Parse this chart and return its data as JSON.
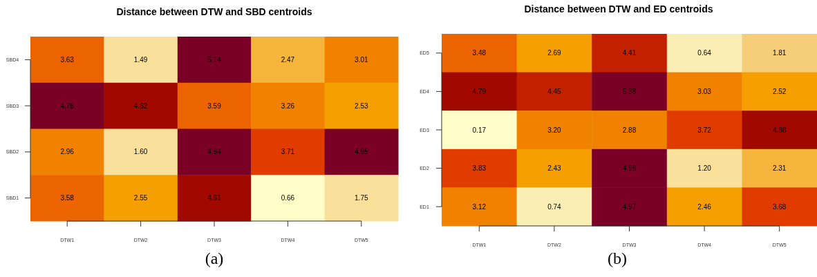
{
  "chart_data": [
    {
      "type": "heatmap",
      "title": "Distance between DTW and SBD centroids",
      "categories": [
        "DTW1",
        "DTW2",
        "DTW3",
        "DTW4",
        "DTW5"
      ],
      "y_categories": [
        "SBD4",
        "SBD3",
        "SBD2",
        "SBD1"
      ],
      "cells": [
        [
          3.63,
          1.49,
          5.14,
          2.47,
          3.01
        ],
        [
          4.78,
          4.62,
          3.59,
          3.26,
          2.53
        ],
        [
          2.96,
          1.6,
          4.84,
          3.71,
          4.95
        ],
        [
          3.58,
          2.55,
          4.61,
          0.66,
          1.75
        ]
      ],
      "cell_labels": [
        [
          "3.63",
          "1.49",
          "5.14",
          "2.47",
          "3.01"
        ],
        [
          "4.78",
          "4.62",
          "3.59",
          "3.26",
          "2.53"
        ],
        [
          "2.96",
          "1.60",
          "4.84",
          "3.71",
          "4.95"
        ],
        [
          "3.58",
          "2.55",
          "4.61",
          "0.66",
          "1.75"
        ]
      ],
      "data_labels": true,
      "annotations": [
        "(a)"
      ]
    },
    {
      "type": "heatmap",
      "title": "Distance between DTW and ED centroids",
      "categories": [
        "DTW1",
        "DTW2",
        "DTW3",
        "DTW4",
        "DTW5"
      ],
      "y_categories": [
        "ED5",
        "ED4",
        "ED3",
        "ED2",
        "ED1"
      ],
      "cells": [
        [
          3.48,
          2.69,
          4.41,
          0.64,
          1.81
        ],
        [
          4.79,
          4.45,
          5.38,
          3.03,
          2.52
        ],
        [
          0.17,
          3.2,
          2.88,
          3.72,
          4.88
        ],
        [
          3.83,
          2.43,
          4.96,
          1.2,
          2.31
        ],
        [
          3.12,
          0.74,
          4.97,
          2.46,
          3.68
        ]
      ],
      "cell_labels": [
        [
          "3.48",
          "2.69",
          "4.41",
          "0.64",
          "1.81"
        ],
        [
          "4.79",
          "4.45",
          "5.38",
          "3.03",
          "2.52"
        ],
        [
          "0.17",
          "3.20",
          "2.88",
          "3.72",
          "4.88"
        ],
        [
          "3.83",
          "2.43",
          "4.96",
          "1.20",
          "2.31"
        ],
        [
          "3.12",
          "0.74",
          "4.97",
          "2.46",
          "3.68"
        ]
      ],
      "data_labels": true,
      "annotations": [
        "(b)"
      ]
    }
  ]
}
